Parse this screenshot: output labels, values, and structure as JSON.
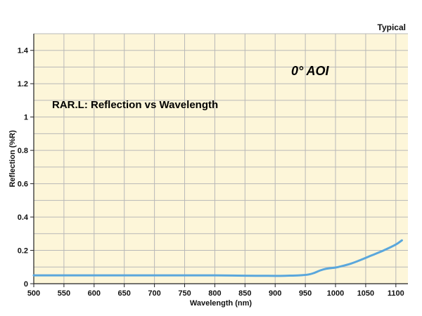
{
  "chart_data": {
    "type": "line",
    "title": "RAR.L: Reflection vs Wavelength",
    "annotation": "0° AOI",
    "corner_note": "Typical",
    "xlabel": "Wavelength (nm)",
    "ylabel": "Reflection (%R)",
    "xlim": [
      500,
      1120
    ],
    "ylim": [
      0,
      1.5
    ],
    "x_ticks": [
      500,
      550,
      600,
      650,
      700,
      750,
      800,
      850,
      900,
      950,
      1000,
      1050,
      1100
    ],
    "x_tick_labels": [
      "500",
      "550",
      "600",
      "650",
      "700",
      "750",
      "800",
      "850",
      "900",
      "950",
      "1000",
      "1050",
      "1100"
    ],
    "y_ticks": [
      0,
      0.2,
      0.4,
      0.6,
      0.8,
      1,
      1.2,
      1.4
    ],
    "y_tick_labels": [
      "0",
      "0.2",
      "0.4",
      "0.6",
      "0.8",
      "1",
      "1.2",
      "1.4"
    ],
    "grid": true,
    "series": [
      {
        "name": "0° AOI",
        "color": "#5aa7dc",
        "x": [
          500,
          550,
          600,
          650,
          700,
          750,
          800,
          850,
          900,
          920,
          940,
          955,
          965,
          975,
          985,
          1000,
          1010,
          1025,
          1040,
          1060,
          1080,
          1100,
          1110
        ],
        "y": [
          0.05,
          0.05,
          0.05,
          0.05,
          0.05,
          0.05,
          0.05,
          0.048,
          0.047,
          0.048,
          0.05,
          0.055,
          0.065,
          0.08,
          0.09,
          0.097,
          0.105,
          0.12,
          0.14,
          0.17,
          0.2,
          0.235,
          0.26
        ]
      }
    ]
  },
  "colors": {
    "plot_background": "#fdf6d9",
    "grid": "#b8b8b8",
    "axis": "#222222",
    "line": "#5aa7dc"
  }
}
